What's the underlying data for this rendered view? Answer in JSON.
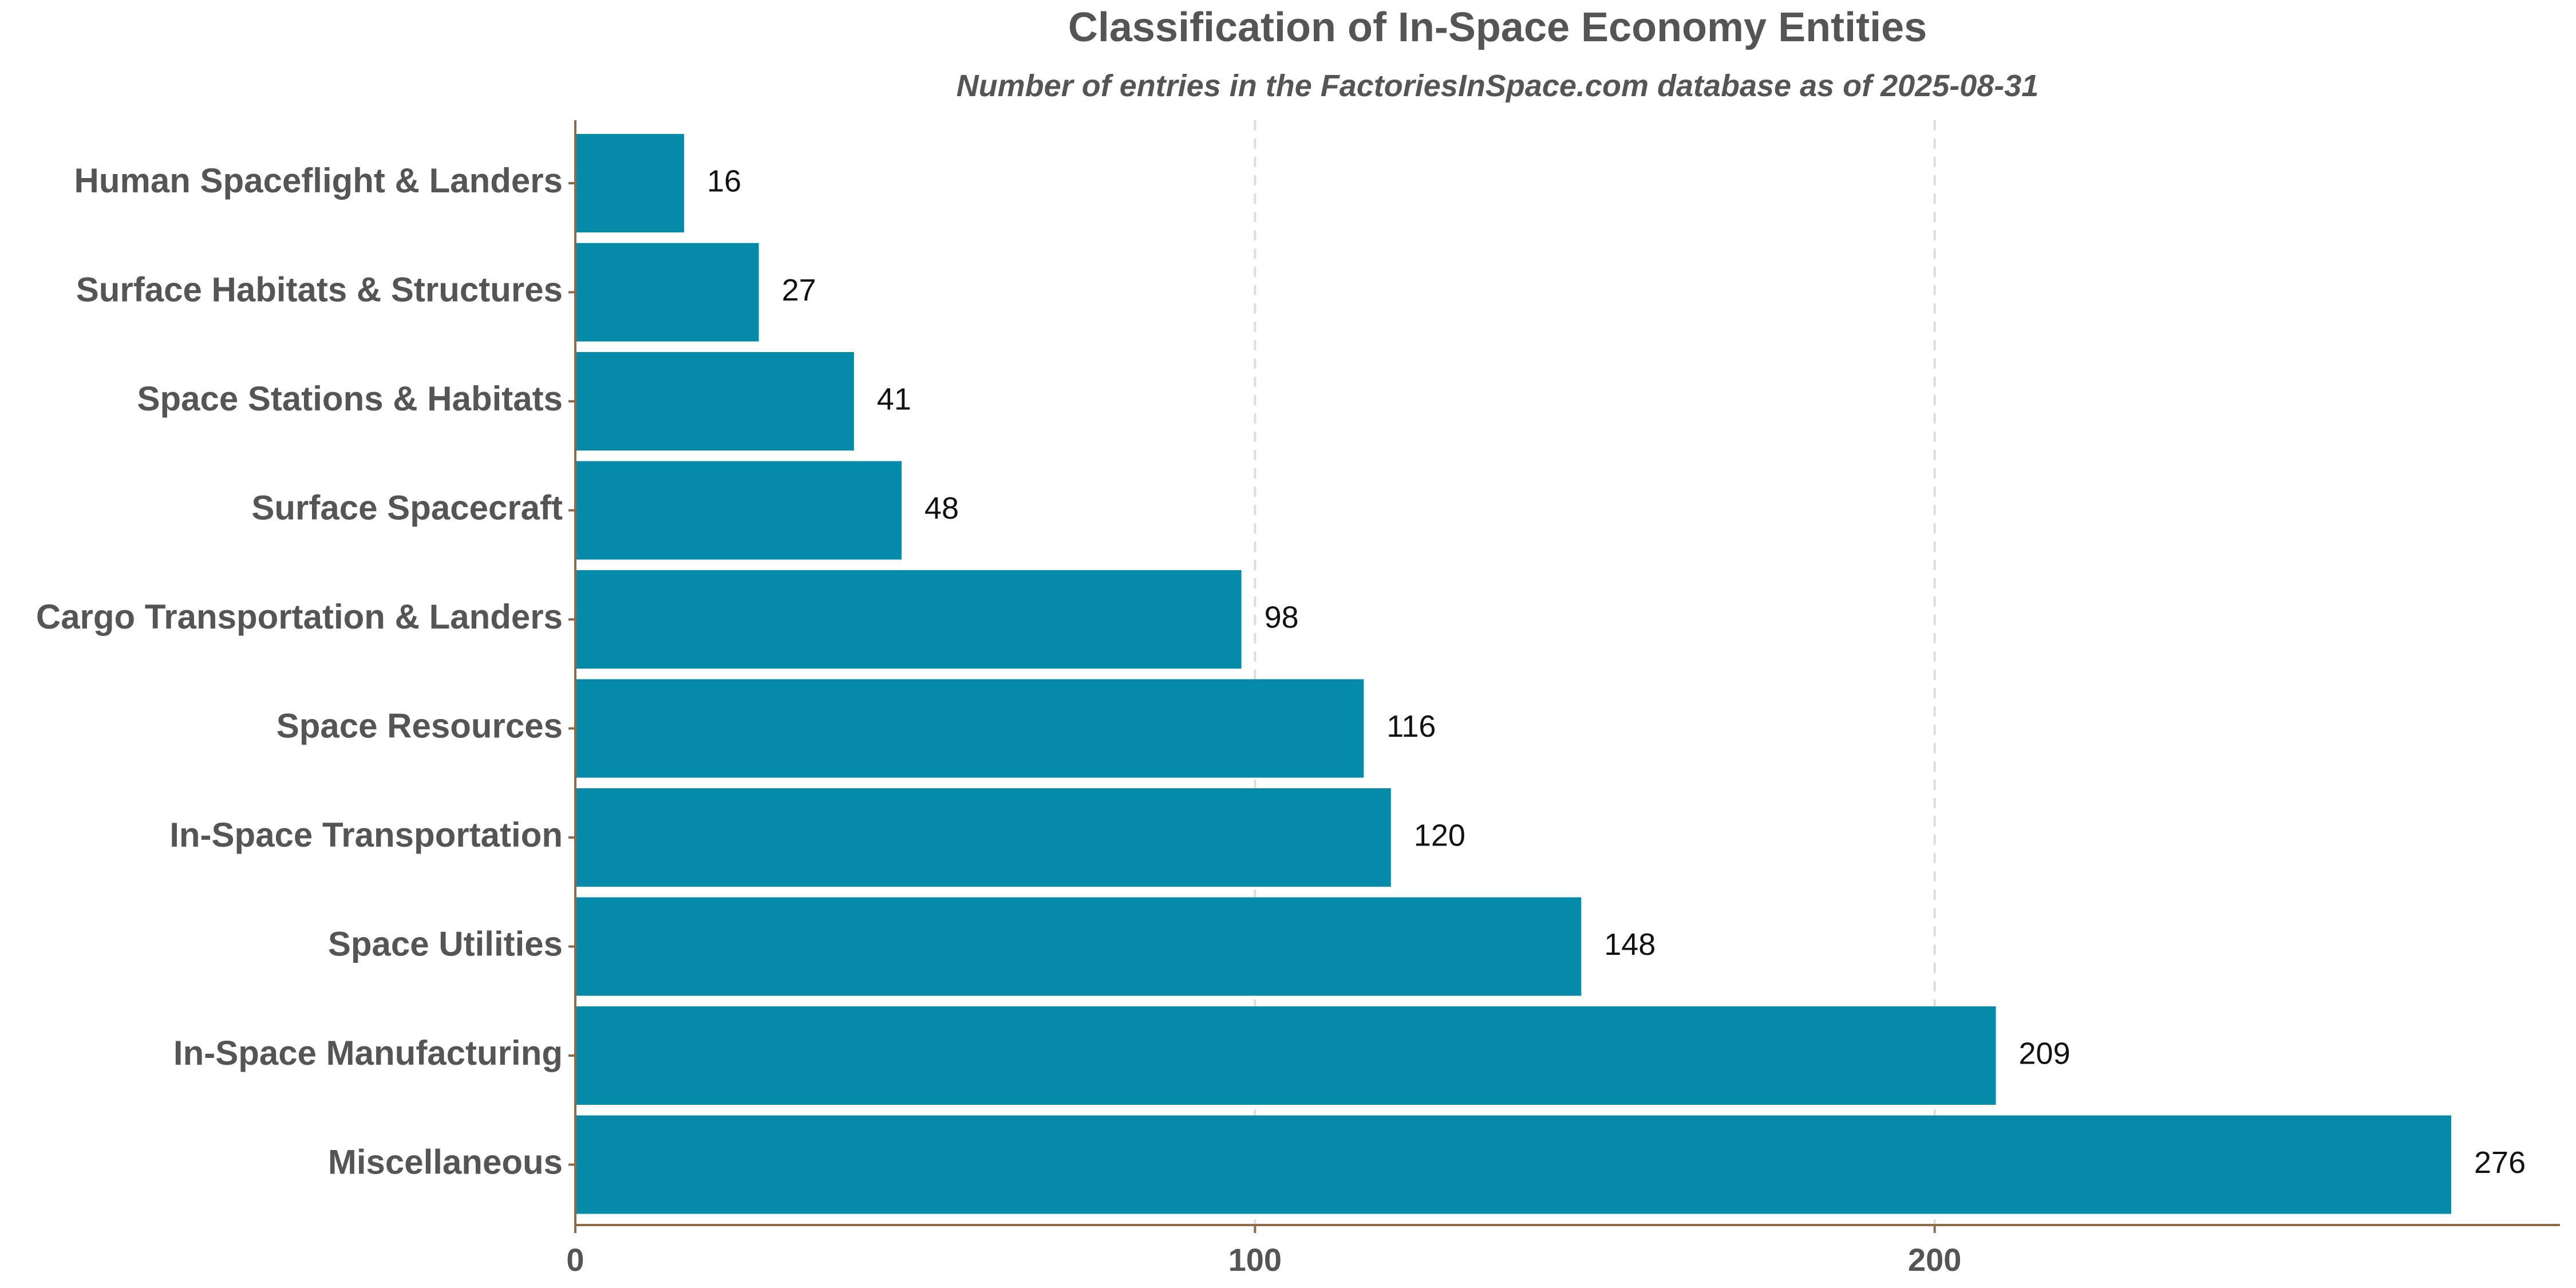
{
  "colors": {
    "bar": "#058BA8",
    "axis": "#8B6B4A",
    "grid": "#dddddd",
    "text": "#555555"
  },
  "chart_data": {
    "type": "bar",
    "orientation": "horizontal",
    "title": "Classification of In-Space Economy Entities",
    "subtitle": "Number of entries in the FactoriesInSpace.com database as of 2025-08-31",
    "xlabel": "",
    "ylabel": "",
    "xlim": [
      0,
      292
    ],
    "x_ticks": [
      0,
      100,
      200
    ],
    "grid": "vertical dashed",
    "legend": "none",
    "categories": [
      "Human Spaceflight & Landers",
      "Surface Habitats & Structures",
      "Space Stations & Habitats",
      "Surface Spacecraft",
      "Cargo Transportation & Landers",
      "Space Resources",
      "In-Space Transportation",
      "Space Utilities",
      "In-Space Manufacturing",
      "Miscellaneous"
    ],
    "values": [
      16,
      27,
      41,
      48,
      98,
      116,
      120,
      148,
      209,
      276
    ]
  }
}
